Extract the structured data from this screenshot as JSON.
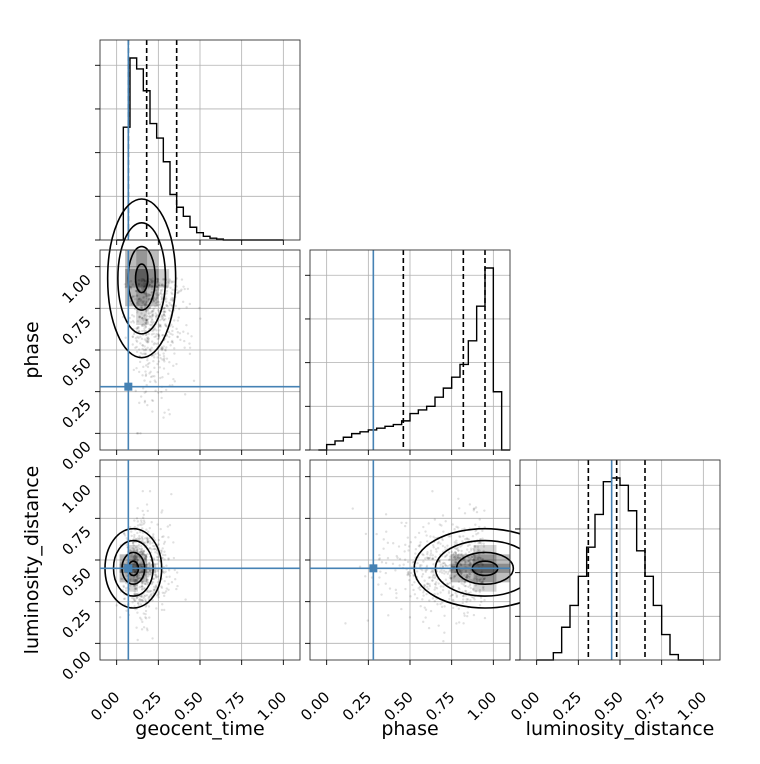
{
  "chart_data": {
    "type": "corner",
    "parameters": [
      "geocent_time",
      "phase",
      "luminosity_distance"
    ],
    "axis_labels": {
      "x": [
        "geocent_time",
        "phase",
        "luminosity_distance"
      ],
      "y": [
        "",
        "phase",
        "luminosity_distance"
      ]
    },
    "axis_range": [
      -0.1,
      1.1
    ],
    "tick_values": [
      0.0,
      0.25,
      0.5,
      0.75,
      1.0
    ],
    "tick_labels": [
      "0.00",
      "0.25",
      "0.50",
      "0.75",
      "1.00"
    ],
    "grid": true,
    "truths": [
      0.07,
      0.28,
      0.45
    ],
    "truth_color": "#4682b4",
    "hist_color": "#000000",
    "quantiles": {
      "geocent_time": [
        0.07,
        0.18,
        0.36
      ],
      "phase": [
        0.46,
        0.82,
        0.95
      ],
      "luminosity_distance": [
        0.31,
        0.48,
        0.65
      ]
    },
    "histograms": {
      "geocent_time": {
        "bin_start": 0.0,
        "bin_width": 0.04,
        "values": [
          0,
          0.62,
          1.0,
          0.94,
          0.82,
          0.64,
          0.56,
          0.43,
          0.25,
          0.18,
          0.13,
          0.07,
          0.04,
          0.02,
          0.01,
          0.005,
          0,
          0,
          0,
          0,
          0,
          0,
          0,
          0,
          0
        ]
      },
      "phase": {
        "bin_start": -0.05,
        "bin_width": 0.05,
        "values": [
          0,
          0.03,
          0.05,
          0.07,
          0.09,
          0.1,
          0.11,
          0.12,
          0.13,
          0.14,
          0.16,
          0.2,
          0.22,
          0.24,
          0.29,
          0.34,
          0.4,
          0.47,
          0.6,
          0.79,
          1.0,
          0.32,
          0
        ]
      },
      "luminosity_distance": {
        "bin_start": 0.0,
        "bin_width": 0.05,
        "values": [
          0,
          0,
          0.04,
          0.18,
          0.3,
          0.46,
          0.62,
          0.8,
          0.98,
          1.0,
          0.96,
          0.82,
          0.6,
          0.46,
          0.3,
          0.14,
          0.03,
          0,
          0,
          0
        ]
      }
    },
    "density_2d": [
      {
        "x": "geocent_time",
        "y": "phase",
        "mode": [
          0.15,
          0.93
        ],
        "spread": [
          0.12,
          0.28
        ]
      },
      {
        "x": "geocent_time",
        "y": "luminosity_distance",
        "mode": [
          0.1,
          0.45
        ],
        "spread": [
          0.1,
          0.14
        ]
      },
      {
        "x": "phase",
        "y": "luminosity_distance",
        "mode": [
          0.95,
          0.45
        ],
        "spread": [
          0.25,
          0.14
        ]
      }
    ]
  }
}
